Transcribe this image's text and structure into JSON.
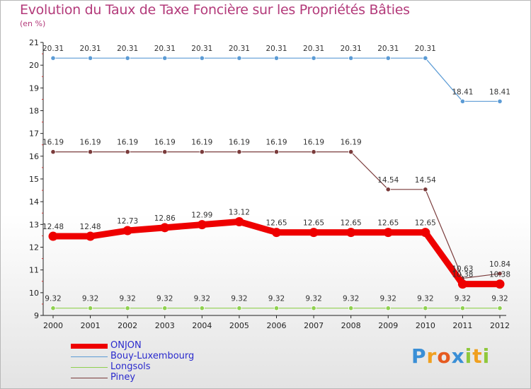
{
  "title": "Evolution du Taux de Taxe Foncière sur les Propriétés Bâties",
  "subtitle": "(en %)",
  "logo": "Proxiti",
  "chart_data": {
    "type": "line",
    "title": "Evolution du Taux de Taxe Foncière sur les Propriétés Bâties",
    "ylabel": "(en %)",
    "xlabel": "",
    "x": [
      "2000",
      "2001",
      "2002",
      "2003",
      "2004",
      "2005",
      "2006",
      "2007",
      "2008",
      "2009",
      "2010",
      "2011",
      "2012"
    ],
    "ylim": [
      9,
      21
    ],
    "yticks": [
      9,
      10,
      11,
      12,
      13,
      14,
      15,
      16,
      17,
      18,
      19,
      20,
      21
    ],
    "grid": false,
    "legend_position": "bottom-left",
    "series": [
      {
        "name": "ONJON",
        "color": "#ee0000",
        "values": [
          12.48,
          12.48,
          12.73,
          12.86,
          12.99,
          13.12,
          12.65,
          12.65,
          12.65,
          12.65,
          12.65,
          10.38,
          10.38
        ],
        "labels": [
          "12.48",
          "12.48",
          "12.73",
          "12.86",
          "12.99",
          "13.12",
          "12.65",
          "12.65",
          "12.65",
          "12.65",
          "12.65",
          "10.38",
          "10.38"
        ]
      },
      {
        "name": "Bouy-Luxembourg",
        "color": "#5b9bd5",
        "values": [
          20.31,
          20.31,
          20.31,
          20.31,
          20.31,
          20.31,
          20.31,
          20.31,
          20.31,
          20.31,
          20.31,
          18.41,
          18.41
        ],
        "labels": [
          "20.31",
          "20.31",
          "20.31",
          "20.31",
          "20.31",
          "20.31",
          "20.31",
          "20.31",
          "20.31",
          "20.31",
          "20.31",
          "18.41",
          "18.41"
        ]
      },
      {
        "name": "Longsols",
        "color": "#8fd14f",
        "values": [
          9.32,
          9.32,
          9.32,
          9.32,
          9.32,
          9.32,
          9.32,
          9.32,
          9.32,
          9.32,
          9.32,
          9.32,
          9.32
        ],
        "labels": [
          "9.32",
          "9.32",
          "9.32",
          "9.32",
          "9.32",
          "9.32",
          "9.32",
          "9.32",
          "9.32",
          "9.32",
          "9.32",
          "9.32",
          "9.32"
        ]
      },
      {
        "name": "Piney",
        "color": "#7a3b3b",
        "values": [
          16.19,
          16.19,
          16.19,
          16.19,
          16.19,
          16.19,
          16.19,
          16.19,
          16.19,
          14.54,
          14.54,
          10.63,
          10.84
        ],
        "labels": [
          "16.19",
          "16.19",
          "16.19",
          "16.19",
          "16.19",
          "16.19",
          "16.19",
          "16.19",
          "16.19",
          "14.54",
          "14.54",
          "10.63",
          "10.84"
        ]
      }
    ]
  }
}
